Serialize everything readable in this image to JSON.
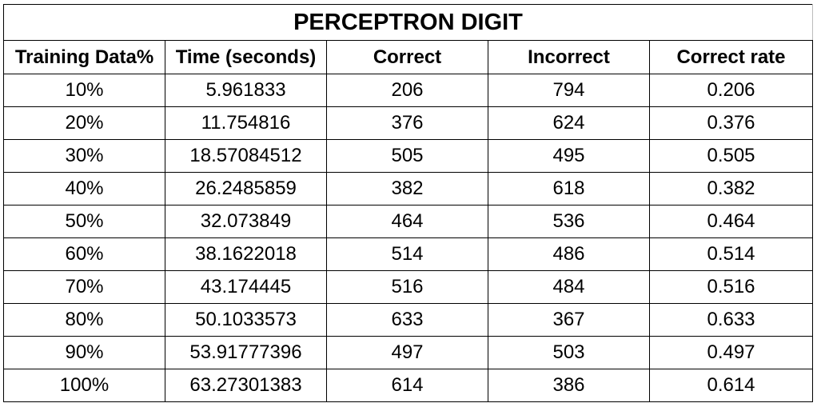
{
  "chart_data": {
    "type": "table",
    "title": "PERCEPTRON DIGIT",
    "columns": [
      "Training Data%",
      "Time (seconds)",
      "Correct",
      "Incorrect",
      "Correct rate"
    ],
    "rows": [
      [
        "10%",
        "5.961833",
        "206",
        "794",
        "0.206"
      ],
      [
        "20%",
        "11.754816",
        "376",
        "624",
        "0.376"
      ],
      [
        "30%",
        "18.57084512",
        "505",
        "495",
        "0.505"
      ],
      [
        "40%",
        "26.2485859",
        "382",
        "618",
        "0.382"
      ],
      [
        "50%",
        "32.073849",
        "464",
        "536",
        "0.464"
      ],
      [
        "60%",
        "38.1622018",
        "514",
        "486",
        "0.514"
      ],
      [
        "70%",
        "43.174445",
        "516",
        "484",
        "0.516"
      ],
      [
        "80%",
        "50.1033573",
        "633",
        "367",
        "0.633"
      ],
      [
        "90%",
        "53.91777396",
        "497",
        "503",
        "0.497"
      ],
      [
        "100%",
        "63.27301383",
        "614",
        "386",
        "0.614"
      ]
    ]
  }
}
